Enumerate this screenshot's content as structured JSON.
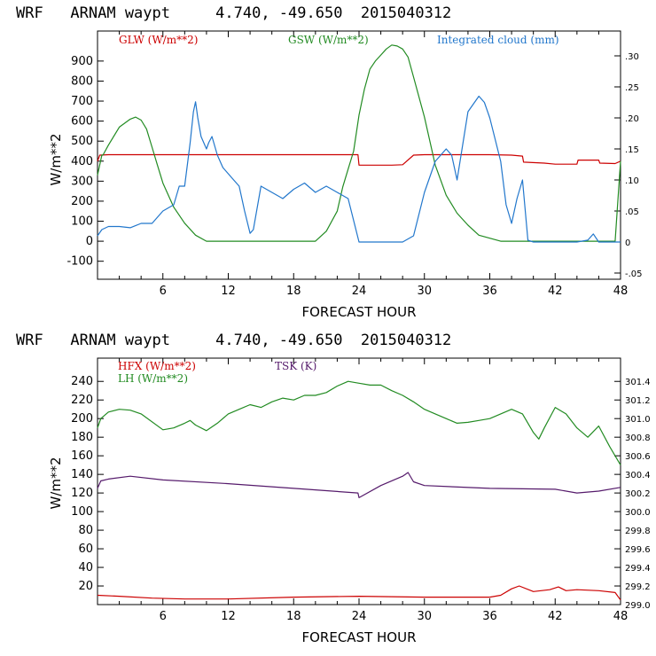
{
  "chart_data": [
    {
      "type": "line",
      "title": "WRF   ARNAM waypt     4.740, -49.650  2015040312",
      "xlabel": "FORECAST HOUR",
      "ylabel": "W/m**2",
      "xlim": [
        0,
        48
      ],
      "ylim": [
        -190,
        1050
      ],
      "y2lim": [
        -0.06,
        0.34
      ],
      "xticks": [
        "6",
        "12",
        "18",
        "24",
        "30",
        "36",
        "42",
        "48"
      ],
      "yticks": [
        "-100",
        "0",
        "100",
        "200",
        "300",
        "400",
        "500",
        "600",
        "700",
        "800",
        "900"
      ],
      "y2ticks": [
        "-.05",
        "0",
        ".05",
        ".10",
        ".15",
        ".20",
        ".25",
        ".30"
      ],
      "series": [
        {
          "name": "GLW (W/m**2)",
          "color": "#cc0000",
          "axis": "left",
          "x": [
            0,
            0.2,
            1,
            4,
            8,
            12,
            16,
            20,
            23.9,
            24,
            27,
            28,
            29,
            30,
            33,
            36,
            38,
            39,
            39.1,
            41,
            42,
            44,
            44.1,
            46,
            46.1,
            47.5,
            48
          ],
          "y": [
            400,
            430,
            432,
            432,
            432,
            432,
            432,
            432,
            432,
            380,
            380,
            382,
            430,
            432,
            432,
            432,
            430,
            425,
            395,
            390,
            385,
            385,
            405,
            405,
            390,
            388,
            400
          ]
        },
        {
          "name": "GSW (W/m**2)",
          "color": "#228b22",
          "axis": "left",
          "x": [
            0,
            0.4,
            0.5,
            1,
            2,
            3,
            3.5,
            4,
            4.5,
            5,
            5.5,
            6,
            7,
            8,
            9,
            10,
            11,
            18,
            20,
            21,
            22,
            22.5,
            23,
            23.5,
            24,
            24.5,
            25,
            25.5,
            26,
            26.5,
            27,
            27.5,
            28,
            28.5,
            29,
            30,
            31,
            32,
            33,
            34,
            35,
            37,
            47.5,
            48
          ],
          "y": [
            330,
            430,
            430,
            480,
            570,
            610,
            620,
            605,
            560,
            470,
            380,
            290,
            170,
            90,
            30,
            0,
            0,
            0,
            0,
            50,
            150,
            270,
            360,
            450,
            630,
            760,
            860,
            900,
            930,
            960,
            980,
            975,
            960,
            920,
            820,
            620,
            380,
            230,
            140,
            80,
            30,
            0,
            0,
            400
          ]
        },
        {
          "name": "Integrated cloud (mm)",
          "color": "#2277cc",
          "axis": "right",
          "x": [
            0,
            0.4,
            1,
            2,
            3,
            4,
            5,
            6,
            7,
            7.5,
            8,
            8.5,
            8.8,
            9,
            9.2,
            9.5,
            10,
            10.2,
            10.5,
            11,
            11.5,
            12,
            12.5,
            13,
            13.5,
            14,
            14.3,
            15,
            16,
            17,
            18,
            19,
            20,
            21,
            22,
            23,
            24,
            25,
            26,
            27,
            28,
            29,
            30,
            31,
            32,
            32.5,
            33,
            34,
            35,
            35.5,
            36,
            37,
            37.5,
            38,
            38.5,
            39,
            39.5,
            40,
            44,
            45,
            45.5,
            46,
            48
          ],
          "y": [
            0.01,
            0.02,
            0.025,
            0.025,
            0.023,
            0.03,
            0.03,
            0.05,
            0.06,
            0.09,
            0.09,
            0.16,
            0.21,
            0.226,
            0.2,
            0.17,
            0.15,
            0.16,
            0.17,
            0.14,
            0.12,
            0.11,
            0.1,
            0.09,
            0.05,
            0.014,
            0.02,
            0.09,
            0.08,
            0.07,
            0.085,
            0.095,
            0.08,
            0.09,
            0.08,
            0.07,
            0,
            0,
            0,
            0,
            0,
            0.01,
            0.08,
            0.13,
            0.15,
            0.14,
            0.1,
            0.21,
            0.235,
            0.225,
            0.2,
            0.13,
            0.06,
            0.03,
            0.07,
            0.1,
            0.003,
            0,
            0,
            0.003,
            0.013,
            0,
            0
          ]
        }
      ]
    },
    {
      "type": "line",
      "title": "WRF   ARNAM waypt     4.740, -49.650  2015040312",
      "xlabel": "FORECAST HOUR",
      "ylabel": "W/m**2",
      "xlim": [
        0,
        48
      ],
      "ylim": [
        0,
        265
      ],
      "y2lim": [
        299.0,
        301.65
      ],
      "xticks": [
        "6",
        "12",
        "18",
        "24",
        "30",
        "36",
        "42",
        "48"
      ],
      "yticks": [
        "20",
        "40",
        "60",
        "80",
        "100",
        "120",
        "140",
        "160",
        "180",
        "200",
        "220",
        "240"
      ],
      "y2ticks": [
        "299.0",
        "299.2",
        "299.4",
        "299.6",
        "299.8",
        "300.0",
        "300.2",
        "300.4",
        "300.6",
        "300.8",
        "301.0",
        "301.2",
        "301.4"
      ],
      "series": [
        {
          "name": "HFX (W/m**2)",
          "color": "#cc0000",
          "axis": "left",
          "x": [
            0,
            2,
            5,
            8,
            12,
            18,
            24,
            30,
            36,
            37,
            38,
            38.7,
            40,
            41.5,
            42.3,
            43,
            44,
            46,
            47.5,
            48
          ],
          "y": [
            10,
            9,
            7,
            6,
            6,
            8,
            9,
            8,
            8,
            10,
            17,
            20,
            14,
            16,
            19,
            15,
            16,
            15,
            13,
            5
          ]
        },
        {
          "name": "LH (W/m**2)",
          "color": "#228b22",
          "axis": "left",
          "x": [
            0,
            0.3,
            1,
            2,
            3,
            4,
            6,
            7,
            8,
            8.5,
            9,
            10,
            11,
            12,
            13,
            14,
            15,
            16,
            17,
            18,
            19,
            20,
            21,
            22,
            23,
            24,
            25,
            26,
            27,
            28,
            29,
            30,
            31,
            32,
            33,
            34,
            35,
            36,
            37,
            38,
            39,
            40,
            40.5,
            41,
            42,
            43,
            44,
            45,
            46,
            47,
            48
          ],
          "y": [
            190,
            200,
            207,
            210,
            209,
            205,
            188,
            190,
            195,
            198,
            193,
            187,
            195,
            205,
            210,
            215,
            212,
            218,
            222,
            220,
            225,
            225,
            228,
            235,
            240,
            238,
            236,
            236,
            230,
            225,
            218,
            210,
            205,
            200,
            195,
            196,
            198,
            200,
            205,
            210,
            205,
            185,
            178,
            190,
            212,
            205,
            190,
            180,
            192,
            170,
            150
          ]
        },
        {
          "name": "TSK (K)",
          "color": "#551a6b",
          "axis": "right",
          "x": [
            0,
            0.3,
            1,
            3,
            6,
            12,
            18,
            23.9,
            24,
            26,
            28,
            28.5,
            29,
            30,
            36,
            42,
            44,
            46,
            48
          ],
          "y": [
            300.25,
            300.33,
            300.35,
            300.38,
            300.34,
            300.3,
            300.25,
            300.2,
            300.15,
            300.28,
            300.38,
            300.42,
            300.32,
            300.28,
            300.25,
            300.24,
            300.2,
            300.22,
            300.26
          ]
        }
      ]
    }
  ]
}
